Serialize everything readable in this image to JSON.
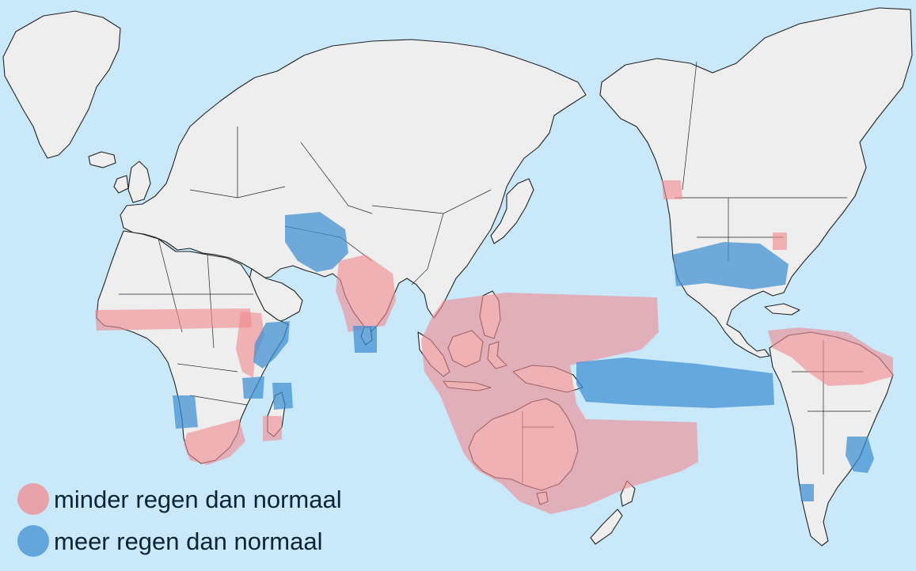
{
  "map": {
    "projection": "Pacific-centered world map",
    "ocean_color": "#c9e9fb",
    "land_color": "#eeeeee",
    "border_color": "#222222"
  },
  "legend": {
    "items": [
      {
        "key": "dry",
        "label": "minder regen dan normaal",
        "color": "#f08a8f"
      },
      {
        "key": "wet",
        "label": "meer regen dan normaal",
        "color": "#3f8fd2"
      }
    ]
  },
  "regions": {
    "dry": [
      "Sahel",
      "Ethiopia / East Africa",
      "Southern Africa",
      "Madagascar",
      "India",
      "Indonesia / Australia / western Pacific",
      "Pacific Northwest",
      "Ohio Valley",
      "Northern South America"
    ],
    "wet": [
      "Iran / Afghanistan",
      "Sri Lanka",
      "East African coast",
      "Mozambique channel",
      "Namibia / Angola",
      "Southern Madagascar",
      "Central equatorial Pacific",
      "Southern United States / Gulf coast",
      "Southeastern South America",
      "Central Chile"
    ]
  }
}
